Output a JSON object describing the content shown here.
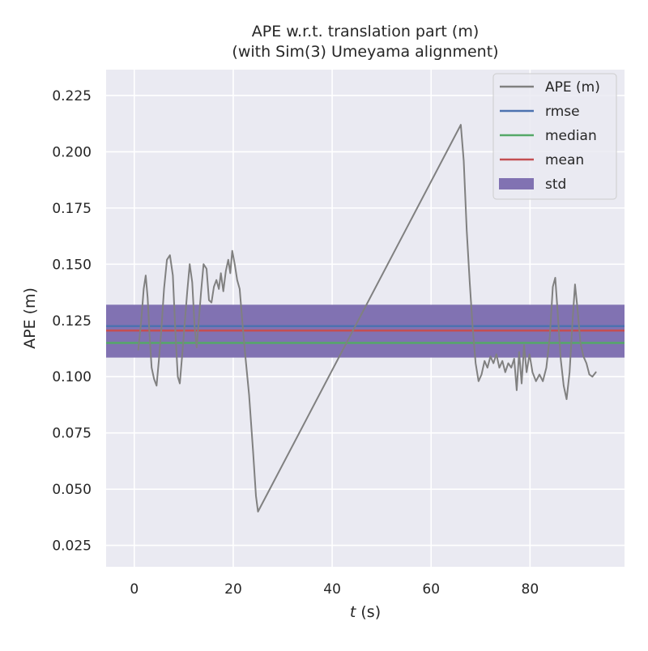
{
  "chart_data": {
    "type": "line",
    "title_line1": "APE w.r.t. translation part (m)",
    "title_line2": "(with Sim(3) Umeyama alignment)",
    "xlabel": "t (s)",
    "xlabel_var": "t",
    "xlabel_unit": " (s)",
    "ylabel": "APE (m)",
    "xlim": [
      -5.7,
      99.1
    ],
    "ylim": [
      0.0155,
      0.2365
    ],
    "xticks": [
      0,
      20,
      40,
      60,
      80
    ],
    "yticks": [
      0.025,
      0.05,
      0.075,
      0.1,
      0.125,
      0.15,
      0.175,
      0.2,
      0.225
    ],
    "ytick_labels": [
      "0.025",
      "0.050",
      "0.075",
      "0.100",
      "0.125",
      "0.150",
      "0.175",
      "0.200",
      "0.225"
    ],
    "grid": true,
    "legend_position": "top-right",
    "stats": {
      "rmse": 0.1225,
      "median": 0.115,
      "mean": 0.1205,
      "std_low": 0.1085,
      "std_high": 0.132
    },
    "legend": [
      {
        "key": "ape",
        "label": "APE (m)",
        "kind": "line",
        "color": "#808080"
      },
      {
        "key": "rmse",
        "label": "rmse",
        "kind": "line",
        "color": "#4c72b0"
      },
      {
        "key": "median",
        "label": "median",
        "kind": "line",
        "color": "#55a868"
      },
      {
        "key": "mean",
        "label": "mean",
        "kind": "line",
        "color": "#c44e52"
      },
      {
        "key": "std",
        "label": "std",
        "kind": "patch",
        "color": "#8172b2"
      }
    ],
    "series": [
      {
        "name": "APE (m)",
        "color": "#808080",
        "points": [
          [
            0.8,
            0.112
          ],
          [
            1.4,
            0.125
          ],
          [
            1.9,
            0.139
          ],
          [
            2.3,
            0.145
          ],
          [
            2.7,
            0.135
          ],
          [
            3.1,
            0.118
          ],
          [
            3.5,
            0.104
          ],
          [
            4.0,
            0.099
          ],
          [
            4.5,
            0.096
          ],
          [
            5.0,
            0.108
          ],
          [
            5.5,
            0.122
          ],
          [
            6.0,
            0.139
          ],
          [
            6.6,
            0.152
          ],
          [
            7.2,
            0.154
          ],
          [
            7.8,
            0.145
          ],
          [
            8.3,
            0.12
          ],
          [
            8.8,
            0.1
          ],
          [
            9.2,
            0.097
          ],
          [
            9.7,
            0.11
          ],
          [
            10.2,
            0.124
          ],
          [
            10.7,
            0.138
          ],
          [
            11.2,
            0.15
          ],
          [
            11.7,
            0.142
          ],
          [
            12.2,
            0.122
          ],
          [
            12.6,
            0.113
          ],
          [
            13.0,
            0.124
          ],
          [
            13.5,
            0.138
          ],
          [
            14.0,
            0.15
          ],
          [
            14.6,
            0.148
          ],
          [
            15.1,
            0.134
          ],
          [
            15.6,
            0.133
          ],
          [
            16.1,
            0.14
          ],
          [
            16.6,
            0.143
          ],
          [
            17.1,
            0.139
          ],
          [
            17.5,
            0.146
          ],
          [
            18.0,
            0.138
          ],
          [
            18.5,
            0.147
          ],
          [
            19.0,
            0.152
          ],
          [
            19.4,
            0.146
          ],
          [
            19.8,
            0.156
          ],
          [
            20.3,
            0.15
          ],
          [
            20.8,
            0.143
          ],
          [
            21.3,
            0.139
          ],
          [
            21.9,
            0.123
          ],
          [
            22.5,
            0.108
          ],
          [
            23.2,
            0.092
          ],
          [
            24.0,
            0.067
          ],
          [
            24.6,
            0.047
          ],
          [
            25.0,
            0.04
          ],
          [
            66.0,
            0.212
          ],
          [
            66.6,
            0.196
          ],
          [
            67.2,
            0.165
          ],
          [
            67.8,
            0.142
          ],
          [
            68.4,
            0.122
          ],
          [
            69.0,
            0.106
          ],
          [
            69.6,
            0.098
          ],
          [
            70.2,
            0.101
          ],
          [
            70.8,
            0.107
          ],
          [
            71.4,
            0.104
          ],
          [
            72.0,
            0.109
          ],
          [
            72.6,
            0.106
          ],
          [
            73.2,
            0.11
          ],
          [
            73.8,
            0.104
          ],
          [
            74.4,
            0.107
          ],
          [
            75.0,
            0.102
          ],
          [
            75.6,
            0.106
          ],
          [
            76.2,
            0.104
          ],
          [
            76.8,
            0.108
          ],
          [
            77.3,
            0.094
          ],
          [
            77.8,
            0.111
          ],
          [
            78.3,
            0.097
          ],
          [
            78.8,
            0.114
          ],
          [
            79.3,
            0.102
          ],
          [
            79.9,
            0.11
          ],
          [
            80.5,
            0.102
          ],
          [
            81.2,
            0.098
          ],
          [
            81.9,
            0.101
          ],
          [
            82.6,
            0.098
          ],
          [
            83.3,
            0.104
          ],
          [
            84.0,
            0.118
          ],
          [
            84.6,
            0.14
          ],
          [
            85.1,
            0.144
          ],
          [
            85.6,
            0.128
          ],
          [
            86.2,
            0.108
          ],
          [
            86.8,
            0.096
          ],
          [
            87.4,
            0.09
          ],
          [
            88.0,
            0.102
          ],
          [
            88.6,
            0.125
          ],
          [
            89.1,
            0.141
          ],
          [
            89.6,
            0.13
          ],
          [
            90.2,
            0.115
          ],
          [
            90.8,
            0.109
          ],
          [
            91.4,
            0.106
          ],
          [
            92.0,
            0.101
          ],
          [
            92.6,
            0.1
          ],
          [
            93.3,
            0.102
          ]
        ]
      }
    ]
  }
}
